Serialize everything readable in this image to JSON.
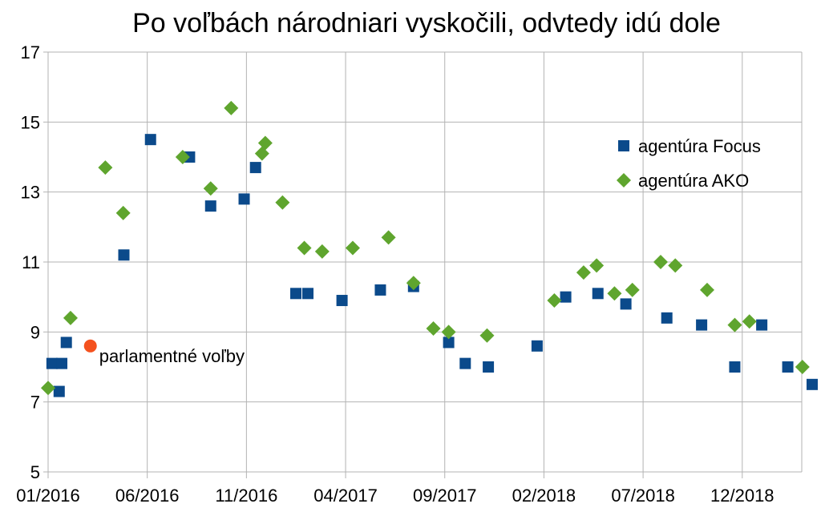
{
  "chart_data": {
    "type": "scatter",
    "title": "Po voľbách národniari vyskočili, odvtedy idú dole",
    "xlabel": "",
    "ylabel": "",
    "x_type": "month",
    "xlim": [
      "2016-01",
      "2019-03"
    ],
    "ylim": [
      5,
      17
    ],
    "y_ticks": [
      5,
      7,
      9,
      11,
      13,
      15,
      17
    ],
    "x_ticks": [
      {
        "x": "2016-01",
        "label": "01/2016"
      },
      {
        "x": "2016-06",
        "label": "06/2016"
      },
      {
        "x": "2016-11",
        "label": "11/2016"
      },
      {
        "x": "2017-04",
        "label": "04/2017"
      },
      {
        "x": "2017-09",
        "label": "09/2017"
      },
      {
        "x": "2018-02",
        "label": "02/2018"
      },
      {
        "x": "2018-07",
        "label": "07/2018"
      },
      {
        "x": "2018-12",
        "label": "12/2018"
      }
    ],
    "grid": true,
    "legend_position": "right",
    "series": [
      {
        "name": "agentúra Focus",
        "marker": "square",
        "color": "#0b4a8b",
        "points": [
          {
            "x": "2016-01-07",
            "y": 8.1
          },
          {
            "x": "2016-01-18",
            "y": 7.3
          },
          {
            "x": "2016-01-22",
            "y": 8.1
          },
          {
            "x": "2016-01-29",
            "y": 8.7
          },
          {
            "x": "2016-04-26",
            "y": 11.2
          },
          {
            "x": "2016-06-06",
            "y": 14.5
          },
          {
            "x": "2016-08-05",
            "y": 14.0
          },
          {
            "x": "2016-09-07",
            "y": 12.6
          },
          {
            "x": "2016-10-28",
            "y": 12.8
          },
          {
            "x": "2016-11-15",
            "y": 13.7
          },
          {
            "x": "2017-01-16",
            "y": 10.1
          },
          {
            "x": "2017-02-04",
            "y": 10.1
          },
          {
            "x": "2017-03-26",
            "y": 9.9
          },
          {
            "x": "2017-05-24",
            "y": 10.2
          },
          {
            "x": "2017-07-14",
            "y": 10.3
          },
          {
            "x": "2017-09-07",
            "y": 8.7
          },
          {
            "x": "2017-10-02",
            "y": 8.1
          },
          {
            "x": "2017-11-07",
            "y": 8.0
          },
          {
            "x": "2018-01-21",
            "y": 8.6
          },
          {
            "x": "2018-03-04",
            "y": 10.0
          },
          {
            "x": "2018-04-23",
            "y": 10.1
          },
          {
            "x": "2018-06-05",
            "y": 9.8
          },
          {
            "x": "2018-08-07",
            "y": 9.4
          },
          {
            "x": "2018-09-30",
            "y": 9.2
          },
          {
            "x": "2018-11-20",
            "y": 8.0
          },
          {
            "x": "2018-12-31",
            "y": 9.2
          },
          {
            "x": "2019-02-10",
            "y": 8.0
          },
          {
            "x": "2019-03-17",
            "y": 7.5
          }
        ]
      },
      {
        "name": "agentúra AKO",
        "marker": "diamond",
        "color": "#5fa52e",
        "points": [
          {
            "x": "2016-01-01",
            "y": 7.4
          },
          {
            "x": "2016-02-05",
            "y": 9.4
          },
          {
            "x": "2016-03-28",
            "y": 13.7
          },
          {
            "x": "2016-04-25",
            "y": 12.4
          },
          {
            "x": "2016-07-25",
            "y": 14.0
          },
          {
            "x": "2016-09-07",
            "y": 13.1
          },
          {
            "x": "2016-10-08",
            "y": 15.4
          },
          {
            "x": "2016-11-25",
            "y": 14.1
          },
          {
            "x": "2016-11-30",
            "y": 14.4
          },
          {
            "x": "2016-12-26",
            "y": 12.7
          },
          {
            "x": "2017-01-29",
            "y": 11.4
          },
          {
            "x": "2017-02-26",
            "y": 11.3
          },
          {
            "x": "2017-04-12",
            "y": 11.4
          },
          {
            "x": "2017-06-06",
            "y": 11.7
          },
          {
            "x": "2017-07-14",
            "y": 10.4
          },
          {
            "x": "2017-08-14",
            "y": 9.1
          },
          {
            "x": "2017-09-07",
            "y": 9.0
          },
          {
            "x": "2017-11-05",
            "y": 8.9
          },
          {
            "x": "2018-02-17",
            "y": 9.9
          },
          {
            "x": "2018-04-01",
            "y": 10.7
          },
          {
            "x": "2018-04-21",
            "y": 10.9
          },
          {
            "x": "2018-05-18",
            "y": 10.1
          },
          {
            "x": "2018-06-15",
            "y": 10.2
          },
          {
            "x": "2018-07-28",
            "y": 11.0
          },
          {
            "x": "2018-08-20",
            "y": 10.9
          },
          {
            "x": "2018-10-08",
            "y": 10.2
          },
          {
            "x": "2018-11-20",
            "y": 9.2
          },
          {
            "x": "2018-12-12",
            "y": 9.3
          },
          {
            "x": "2019-03-02",
            "y": 8.0
          }
        ]
      }
    ],
    "annotations": [
      {
        "label": "parlamentné voľby",
        "x": "2016-03-05",
        "y": 8.6,
        "marker": "circle",
        "color": "#f4511e"
      }
    ]
  }
}
